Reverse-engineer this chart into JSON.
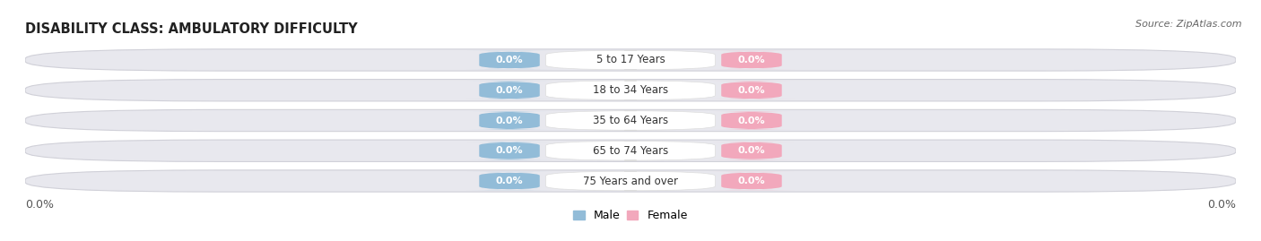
{
  "title": "DISABILITY CLASS: AMBULATORY DIFFICULTY",
  "source": "Source: ZipAtlas.com",
  "categories": [
    "5 to 17 Years",
    "18 to 34 Years",
    "35 to 64 Years",
    "65 to 74 Years",
    "75 Years and over"
  ],
  "male_values": [
    0.0,
    0.0,
    0.0,
    0.0,
    0.0
  ],
  "female_values": [
    0.0,
    0.0,
    0.0,
    0.0,
    0.0
  ],
  "male_color": "#92bcd8",
  "female_color": "#f2a8bc",
  "bar_bg_color": "#e8e8ee",
  "bar_border_color": "#d0d0d8",
  "left_label": "0.0%",
  "right_label": "0.0%",
  "title_fontsize": 10.5,
  "label_fontsize": 8.5,
  "tick_fontsize": 9,
  "background_color": "#ffffff",
  "legend_labels": [
    "Male",
    "Female"
  ]
}
